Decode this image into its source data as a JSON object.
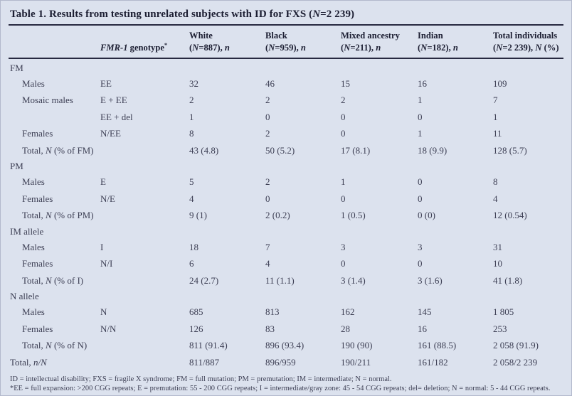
{
  "colors": {
    "background": "#dce2ee",
    "rule": "#272940",
    "title_text": "#1c1e32",
    "body_text": "#3e4055"
  },
  "title": {
    "pre": "Table 1. Results from testing unrelated subjects with ID for FXS (",
    "italic": "N",
    "post": "=2 239)"
  },
  "header": {
    "genotype": {
      "italic": "FMR-1",
      "rest": " genotype",
      "sup": "*"
    },
    "columns": [
      {
        "name": "White",
        "sub_pre": "(",
        "sub_n": "N",
        "sub_mid": "=887), ",
        "sub_it": "n",
        "sub_post": ""
      },
      {
        "name": "Black",
        "sub_pre": "(",
        "sub_n": "N",
        "sub_mid": "=959), ",
        "sub_it": "n",
        "sub_post": ""
      },
      {
        "name": "Mixed ancestry",
        "sub_pre": "(",
        "sub_n": "N",
        "sub_mid": "=211), ",
        "sub_it": "n",
        "sub_post": ""
      },
      {
        "name": "Indian",
        "sub_pre": "(",
        "sub_n": "N",
        "sub_mid": "=182), ",
        "sub_it": "n",
        "sub_post": ""
      },
      {
        "name": "Total individuals",
        "sub_pre": "(",
        "sub_n": "N",
        "sub_mid": "=2 239), ",
        "sub_it": "N",
        "sub_post": " (%)"
      }
    ]
  },
  "rows": [
    {
      "label_pre": "FM"
    },
    {
      "label_pre": "Males",
      "genotype": "EE",
      "values": [
        "32",
        "46",
        "15",
        "16",
        "109"
      ]
    },
    {
      "label_pre": "Mosaic males",
      "genotype": "E + EE",
      "values": [
        "2",
        "2",
        "2",
        "1",
        "7"
      ]
    },
    {
      "label_pre": "",
      "genotype": "EE + del",
      "values": [
        "1",
        "0",
        "0",
        "0",
        "1"
      ]
    },
    {
      "label_pre": "Females",
      "genotype": "N/EE",
      "values": [
        "8",
        "2",
        "0",
        "1",
        "11"
      ]
    },
    {
      "label_pre": "Total, ",
      "label_it": "N",
      "label_post": " (% of FM)",
      "values": [
        "43 (4.8)",
        "50 (5.2)",
        "17 (8.1)",
        "18 (9.9)",
        "128 (5.7)"
      ]
    },
    {
      "label_pre": "PM"
    },
    {
      "label_pre": "Males",
      "genotype": "E",
      "values": [
        "5",
        "2",
        "1",
        "0",
        "8"
      ]
    },
    {
      "label_pre": "Females",
      "genotype": "N/E",
      "values": [
        "4",
        "0",
        "0",
        "0",
        "4"
      ]
    },
    {
      "label_pre": "Total, ",
      "label_it": "N",
      "label_post": " (% of PM)",
      "values": [
        "9 (1)",
        "2 (0.2)",
        "1 (0.5)",
        "0 (0)",
        "12 (0.54)"
      ]
    },
    {
      "label_pre": "IM allele"
    },
    {
      "label_pre": "Males",
      "genotype": "I",
      "values": [
        "18",
        "7",
        "3",
        "3",
        "31"
      ]
    },
    {
      "label_pre": "Females",
      "genotype": "N/I",
      "values": [
        "6",
        "4",
        "0",
        "0",
        "10"
      ]
    },
    {
      "label_pre": "Total, ",
      "label_it": "N",
      "label_post": " (% of I)",
      "values": [
        "24 (2.7)",
        "11 (1.1)",
        "3 (1.4)",
        "3 (1.6)",
        "41 (1.8)"
      ]
    },
    {
      "label_pre": "N allele"
    },
    {
      "label_pre": "Males",
      "genotype": "N",
      "values": [
        "685",
        "813",
        "162",
        "145",
        "1 805"
      ]
    },
    {
      "label_pre": "Females",
      "genotype": "N/N",
      "values": [
        "126",
        "83",
        "28",
        "16",
        "253"
      ]
    },
    {
      "label_pre": "Total, ",
      "label_it": "N",
      "label_post": " (% of N)",
      "values": [
        "811 (91.4)",
        "896 (93.4)",
        "190 (90)",
        "161 (88.5)",
        "2 058 (91.9)"
      ]
    },
    {
      "label_pre": "Total, ",
      "label_it": "n/N",
      "label_post": "",
      "values": [
        "811/887",
        "896/959",
        "190/211",
        "161/182",
        "2 058/2 239"
      ]
    }
  ],
  "footnotes": [
    "ID = intellectual disability; FXS = fragile X syndrome; FM = full mutation; PM = premutation; IM = intermediate; N = normal.",
    "*EE = full expansion: >200 CGG repeats; E = premutation: 55 - 200 CGG repeats; I = intermediate/gray zone: 45 - 54 CGG repeats; del= deletion; N = normal: 5 - 44 CGG repeats."
  ]
}
